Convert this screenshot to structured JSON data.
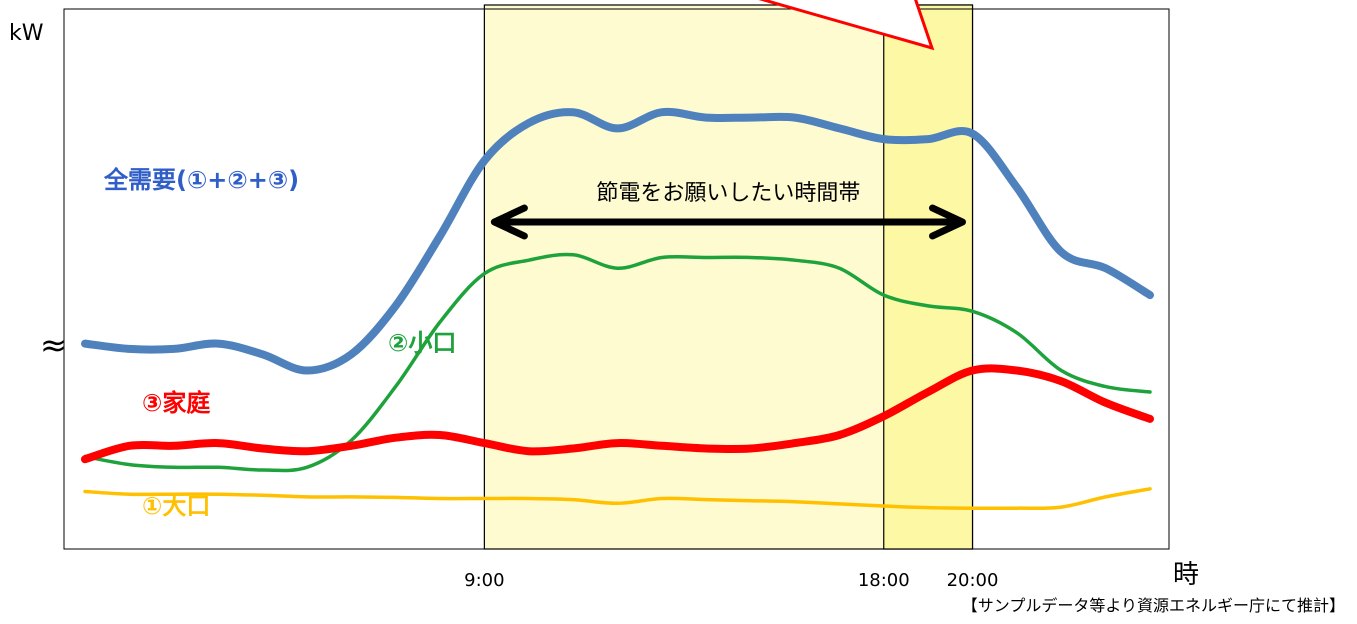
{
  "chart_data": {
    "type": "line",
    "ylabel": "kW",
    "xlabel": "時",
    "xlim": [
      0,
      24
    ],
    "x_ticks": [
      {
        "x": 9,
        "label": "9:00"
      },
      {
        "x": 18,
        "label": "18:00"
      },
      {
        "x": 20,
        "label": "20:00"
      }
    ],
    "y_axis_break": "≈",
    "shaded_periods": [
      {
        "from": 9,
        "to": 20
      },
      {
        "from": 18,
        "to": 20
      }
    ],
    "annotation": {
      "text": "節電をお願いしたい時間帯",
      "from": 9,
      "to": 20
    },
    "series": [
      {
        "name": "全需要(①+②+③)",
        "color": "#4f81bd",
        "x": [
          0,
          1,
          2,
          3,
          4,
          5,
          6,
          7,
          8,
          9,
          10,
          11,
          12,
          13,
          14,
          15,
          16,
          17,
          18,
          19,
          20,
          21,
          22,
          23,
          24
        ],
        "y": [
          0.38,
          0.37,
          0.37,
          0.38,
          0.36,
          0.33,
          0.36,
          0.45,
          0.58,
          0.72,
          0.79,
          0.81,
          0.78,
          0.81,
          0.8,
          0.8,
          0.8,
          0.78,
          0.76,
          0.76,
          0.77,
          0.67,
          0.55,
          0.52,
          0.47
        ]
      },
      {
        "name": "②小口",
        "color": "#1ea23b",
        "x": [
          0,
          1,
          2,
          3,
          4,
          5,
          6,
          7,
          8,
          9,
          10,
          11,
          12,
          13,
          14,
          15,
          16,
          17,
          18,
          19,
          20,
          21,
          22,
          23,
          24
        ],
        "y": [
          0.17,
          0.155,
          0.15,
          0.15,
          0.145,
          0.15,
          0.2,
          0.3,
          0.42,
          0.51,
          0.535,
          0.545,
          0.52,
          0.54,
          0.54,
          0.54,
          0.535,
          0.52,
          0.47,
          0.45,
          0.44,
          0.4,
          0.33,
          0.3,
          0.29
        ]
      },
      {
        "name": "③家庭",
        "color": "#ff0000",
        "x": [
          0,
          1,
          2,
          3,
          4,
          5,
          6,
          7,
          8,
          9,
          10,
          11,
          12,
          13,
          14,
          15,
          16,
          17,
          18,
          19,
          20,
          21,
          22,
          23,
          24
        ],
        "y": [
          0.165,
          0.19,
          0.19,
          0.195,
          0.185,
          0.18,
          0.19,
          0.205,
          0.21,
          0.195,
          0.18,
          0.185,
          0.195,
          0.19,
          0.185,
          0.185,
          0.195,
          0.21,
          0.245,
          0.29,
          0.33,
          0.33,
          0.31,
          0.27,
          0.24
        ]
      },
      {
        "name": "①大口",
        "color": "#ffc000",
        "x": [
          0,
          1,
          2,
          3,
          4,
          5,
          6,
          7,
          8,
          9,
          10,
          11,
          12,
          13,
          14,
          15,
          16,
          17,
          18,
          19,
          20,
          21,
          22,
          23,
          24
        ],
        "y": [
          0.105,
          0.1,
          0.1,
          0.1,
          0.098,
          0.095,
          0.095,
          0.094,
          0.092,
          0.092,
          0.092,
          0.09,
          0.083,
          0.092,
          0.09,
          0.088,
          0.086,
          0.082,
          0.078,
          0.075,
          0.074,
          0.074,
          0.076,
          0.095,
          0.11
        ]
      }
    ],
    "series_labels": [
      {
        "series": "全需要(①+②+③)",
        "text": "全需要(①+②+③)"
      },
      {
        "series": "②小口",
        "text": "②小口"
      },
      {
        "series": "③家庭",
        "text": "③家庭"
      },
      {
        "series": "①大口",
        "text": "①大口"
      }
    ],
    "source_note": "【サンプルデータ等より資源エネルギー庁にて推計】"
  }
}
